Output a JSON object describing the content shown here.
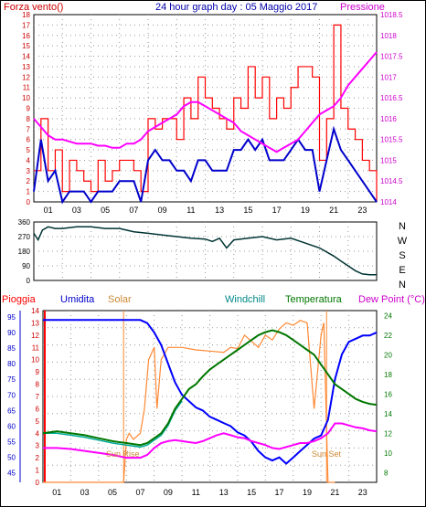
{
  "header": {
    "left": "Forza vento()",
    "center": "24 hour graph day : 05 Maggio 2017",
    "right": "Pressione"
  },
  "legend": {
    "rain": "Pioggia",
    "humidity": "Umidita",
    "solar": "Solar",
    "windchill": "Windchill",
    "temperature": "Temperatura",
    "dewpoint": "Dew Point (°C)"
  },
  "annotations": {
    "sunrise": "Sun Rise",
    "sunset": "Sun Set"
  },
  "colors": {
    "gust": "#ff0000",
    "wind": "#0000cc",
    "pressure": "#ff00ff",
    "direction": "#003333",
    "humidity": "#0000ff",
    "solar": "#ff8833",
    "temperature": "#007700",
    "windchill": "#00aa99",
    "dewpoint": "#ff00ff",
    "rain": "#ff0000",
    "grid": "#999999",
    "axis": "#000000"
  },
  "chart_data": [
    {
      "type": "line",
      "title": "24 hour graph day : 05 Maggio 2017",
      "x_ticks": [
        "01",
        "03",
        "05",
        "07",
        "09",
        "11",
        "13",
        "15",
        "17",
        "19",
        "21",
        "23"
      ],
      "xlim": [
        0,
        24
      ],
      "left_axis": {
        "label": "Forza vento()",
        "ylim": [
          0,
          18
        ],
        "ticks": [
          "0",
          "1",
          "2",
          "3",
          "4",
          "5",
          "6",
          "7",
          "8",
          "9",
          "10",
          "11",
          "12",
          "13",
          "14",
          "15",
          "16",
          "17",
          "18"
        ]
      },
      "right_axis": {
        "label": "Pressione",
        "ylim": [
          1014,
          1018.5
        ],
        "ticks": [
          "1014",
          "1014.5",
          "1015",
          "1015.5",
          "1016",
          "1016.5",
          "1017",
          "1017.5",
          "1018",
          "1018.5"
        ]
      },
      "series": [
        {
          "axis": "left",
          "x": [
            0,
            0.5,
            1,
            1.5,
            2,
            2.5,
            3,
            3.5,
            4,
            4.5,
            5,
            5.5,
            6,
            6.5,
            7,
            7.5,
            8,
            8.5,
            9,
            9.5,
            10,
            10.5,
            11,
            11.5,
            12,
            12.5,
            13,
            13.5,
            14,
            14.5,
            15,
            15.5,
            16,
            16.5,
            17,
            17.5,
            18,
            18.5,
            19,
            19.5,
            20,
            20.5,
            21,
            21.5,
            22,
            22.5,
            23,
            23.5,
            24
          ],
          "y": [
            3,
            8,
            3,
            5,
            1,
            4,
            3,
            2,
            1,
            4,
            2,
            3,
            4,
            4,
            3,
            1,
            8,
            7,
            8,
            8,
            6,
            10,
            8,
            12,
            10,
            9,
            8,
            7,
            10,
            9,
            13,
            10,
            12,
            8,
            10,
            9,
            11,
            13,
            13,
            12,
            4,
            8,
            17,
            9,
            7,
            6,
            4,
            3,
            0
          ]
        },
        {
          "axis": "left",
          "x": [
            0,
            0.5,
            1,
            1.5,
            2,
            2.5,
            3,
            3.5,
            4,
            4.5,
            5,
            5.5,
            6,
            6.5,
            7,
            7.5,
            8,
            8.5,
            9,
            9.5,
            10,
            10.5,
            11,
            11.5,
            12,
            12.5,
            13,
            13.5,
            14,
            14.5,
            15,
            15.5,
            16,
            16.5,
            17,
            17.5,
            18,
            18.5,
            19,
            19.5,
            20,
            20.5,
            21,
            21.5,
            22,
            22.5,
            23,
            23.5,
            24
          ],
          "y": [
            1,
            6,
            2,
            3,
            0,
            1,
            1,
            1,
            0,
            1,
            1,
            1,
            2,
            2,
            2,
            0,
            4,
            5,
            4,
            4,
            3,
            3,
            2,
            4,
            4,
            3,
            3,
            3,
            5,
            5,
            6,
            5,
            6,
            4,
            4,
            4,
            5,
            6,
            5,
            5,
            1,
            4,
            7,
            5,
            4,
            3,
            2,
            1,
            0
          ]
        },
        {
          "axis": "right",
          "x": [
            0,
            0.5,
            1,
            1.5,
            2,
            2.5,
            3,
            3.5,
            4,
            4.5,
            5,
            5.5,
            6,
            6.5,
            7,
            7.5,
            8,
            8.5,
            9,
            9.5,
            10,
            10.5,
            11,
            11.5,
            12,
            12.5,
            13,
            13.5,
            14,
            14.5,
            15,
            15.5,
            16,
            16.5,
            17,
            17.5,
            18,
            18.5,
            19,
            19.5,
            20,
            20.5,
            21,
            21.5,
            22,
            22.5,
            23,
            23.5,
            24
          ],
          "y": [
            1016.0,
            1015.8,
            1015.6,
            1015.5,
            1015.5,
            1015.45,
            1015.4,
            1015.4,
            1015.4,
            1015.35,
            1015.35,
            1015.3,
            1015.3,
            1015.4,
            1015.4,
            1015.5,
            1015.7,
            1015.8,
            1015.9,
            1016.0,
            1016.1,
            1016.3,
            1016.4,
            1016.4,
            1016.3,
            1016.2,
            1016.1,
            1016.0,
            1015.9,
            1015.7,
            1015.6,
            1015.5,
            1015.4,
            1015.3,
            1015.2,
            1015.3,
            1015.4,
            1015.5,
            1015.7,
            1015.9,
            1016.1,
            1016.2,
            1016.3,
            1016.5,
            1016.8,
            1017.0,
            1017.2,
            1017.4,
            1017.6
          ]
        }
      ]
    },
    {
      "type": "line",
      "x_ticks": [
        "01",
        "03",
        "05",
        "07",
        "09",
        "11",
        "13",
        "15",
        "17",
        "19",
        "21",
        "23"
      ],
      "xlim": [
        0,
        24
      ],
      "ylim": [
        0,
        360
      ],
      "y_ticks": [
        "0",
        "90",
        "180",
        "270",
        "360"
      ],
      "compass_labels": [
        "N",
        "W",
        "S",
        "E",
        "N"
      ],
      "series": [
        {
          "x": [
            0,
            0.3,
            0.6,
            1,
            1.5,
            2,
            3,
            4,
            5,
            6,
            7,
            8,
            9,
            10,
            11,
            12,
            12.5,
            13,
            13.5,
            14,
            15,
            16,
            17,
            18,
            19,
            20,
            21,
            21.5,
            22,
            22.5,
            23,
            23.5,
            24
          ],
          "y": [
            290,
            250,
            310,
            330,
            320,
            320,
            330,
            330,
            320,
            320,
            300,
            290,
            280,
            270,
            260,
            255,
            240,
            260,
            200,
            250,
            260,
            270,
            250,
            260,
            230,
            200,
            150,
            120,
            90,
            60,
            40,
            35,
            35
          ]
        }
      ]
    },
    {
      "type": "line",
      "x_ticks": [
        "01",
        "03",
        "05",
        "07",
        "09",
        "11",
        "13",
        "15",
        "17",
        "19",
        "21",
        "23"
      ],
      "xlim": [
        0,
        24
      ],
      "left_axis": {
        "label": "Umidita",
        "ylim": [
          42,
          97
        ],
        "ticks": [
          "45",
          "50",
          "55",
          "60",
          "65",
          "70",
          "75",
          "80",
          "85",
          "90",
          "95"
        ]
      },
      "rain_axis": {
        "label": "Pioggia",
        "ylim": [
          0,
          14
        ],
        "ticks": [
          "0",
          "1",
          "2",
          "3",
          "4",
          "5",
          "6",
          "7",
          "8",
          "9",
          "10",
          "11",
          "12",
          "13",
          "14"
        ]
      },
      "right_axis": {
        "label": "Dew Point (°C)",
        "ylim": [
          7,
          24.5
        ],
        "ticks": [
          "8",
          "10",
          "12",
          "14",
          "16",
          "18",
          "20",
          "22",
          "24"
        ]
      },
      "series": [
        {
          "name": "Umidita",
          "axis": "left",
          "x": [
            0,
            1,
            2,
            3,
            4,
            5,
            6,
            7,
            7.5,
            8,
            8.5,
            9,
            9.5,
            10,
            10.5,
            11,
            11.5,
            12,
            12.5,
            13,
            13.5,
            14,
            14.5,
            15,
            15.5,
            16,
            16.5,
            17,
            17.5,
            18,
            18.5,
            19,
            19.5,
            20,
            20.5,
            21,
            21.5,
            22,
            22.5,
            23,
            23.5,
            24
          ],
          "y": [
            94,
            94,
            94,
            94,
            94,
            94,
            94,
            94,
            93,
            90,
            86,
            80,
            74,
            70,
            68,
            66,
            65,
            63,
            62,
            61,
            60,
            58,
            57,
            55,
            52,
            50,
            49,
            50,
            48,
            50,
            52,
            54,
            56,
            57,
            62,
            75,
            83,
            87,
            88,
            89,
            89,
            90
          ]
        },
        {
          "name": "Solar",
          "axis": "rain",
          "x": [
            0,
            5,
            5.8,
            6,
            6.2,
            6.5,
            7,
            7.3,
            7.6,
            8,
            8.2,
            8.5,
            9,
            9.5,
            10,
            11,
            12,
            13,
            13.5,
            14,
            14.5,
            15,
            15.5,
            16,
            16.5,
            17,
            17.5,
            18,
            18.5,
            19,
            19.5,
            20,
            20.2,
            20.5,
            21
          ],
          "y": [
            0,
            0,
            0,
            3.5,
            4,
            3.5,
            4,
            6,
            10,
            11,
            6,
            10,
            11,
            11,
            11,
            10.8,
            10.7,
            10.6,
            11,
            10.9,
            12,
            11.5,
            11,
            12,
            11.6,
            12.5,
            13,
            12.8,
            13.2,
            13,
            6,
            12,
            13,
            0,
            0
          ]
        },
        {
          "name": "Temperatura",
          "axis": "right",
          "x": [
            0,
            1,
            2,
            3,
            4,
            5,
            6,
            7,
            7.5,
            8,
            8.5,
            9,
            9.5,
            10,
            10.5,
            11,
            11.5,
            12,
            12.5,
            13,
            13.5,
            14,
            14.5,
            15,
            15.5,
            16,
            16.5,
            17,
            17.5,
            18,
            18.5,
            19,
            19.5,
            20,
            20.5,
            21,
            21.5,
            22,
            22.5,
            23,
            23.5,
            24
          ],
          "y": [
            12,
            12.2,
            12,
            11.8,
            11.5,
            11.2,
            11,
            10.8,
            11,
            11.5,
            12,
            13,
            14.5,
            15.5,
            16.5,
            17,
            17.8,
            18.5,
            19,
            19.5,
            20,
            20.5,
            21,
            21.5,
            22,
            22.3,
            22.5,
            22.3,
            22,
            21.5,
            21,
            20.5,
            20,
            19,
            18,
            17,
            16.5,
            16,
            15.5,
            15.2,
            15,
            14.9
          ]
        },
        {
          "name": "Windchill",
          "axis": "right",
          "x": [
            0,
            1,
            2,
            3,
            4,
            5,
            6,
            7,
            7.5,
            8,
            8.5,
            9,
            9.5,
            10
          ],
          "y": [
            12,
            12,
            11.8,
            11.6,
            11.3,
            11,
            10.8,
            10.6,
            10.8,
            11.3,
            11.8,
            12.8,
            14.3,
            15.3
          ]
        },
        {
          "name": "Dew Point (°C)",
          "axis": "right",
          "x": [
            0,
            1,
            2,
            3,
            4,
            5,
            6,
            7,
            7.5,
            8,
            8.5,
            9,
            9.5,
            10,
            10.5,
            11,
            11.5,
            12,
            12.5,
            13,
            13.5,
            14,
            14.5,
            15,
            15.5,
            16,
            16.5,
            17,
            17.5,
            18,
            18.5,
            19,
            19.5,
            20,
            20.5,
            21,
            21.5,
            22,
            22.5,
            23,
            23.5,
            24
          ],
          "y": [
            10.5,
            10.5,
            10.4,
            10.2,
            10,
            9.8,
            9.5,
            9.5,
            9.8,
            10.5,
            11,
            11.2,
            11.3,
            11.2,
            11.1,
            11,
            11.2,
            11.5,
            11.8,
            12,
            11.8,
            11.6,
            11.5,
            11.2,
            11,
            10.8,
            10.5,
            10.4,
            10.6,
            10.8,
            11,
            11,
            11.2,
            11.5,
            12,
            13,
            13,
            12.8,
            12.6,
            12.5,
            12.3,
            12.2
          ]
        }
      ]
    }
  ]
}
